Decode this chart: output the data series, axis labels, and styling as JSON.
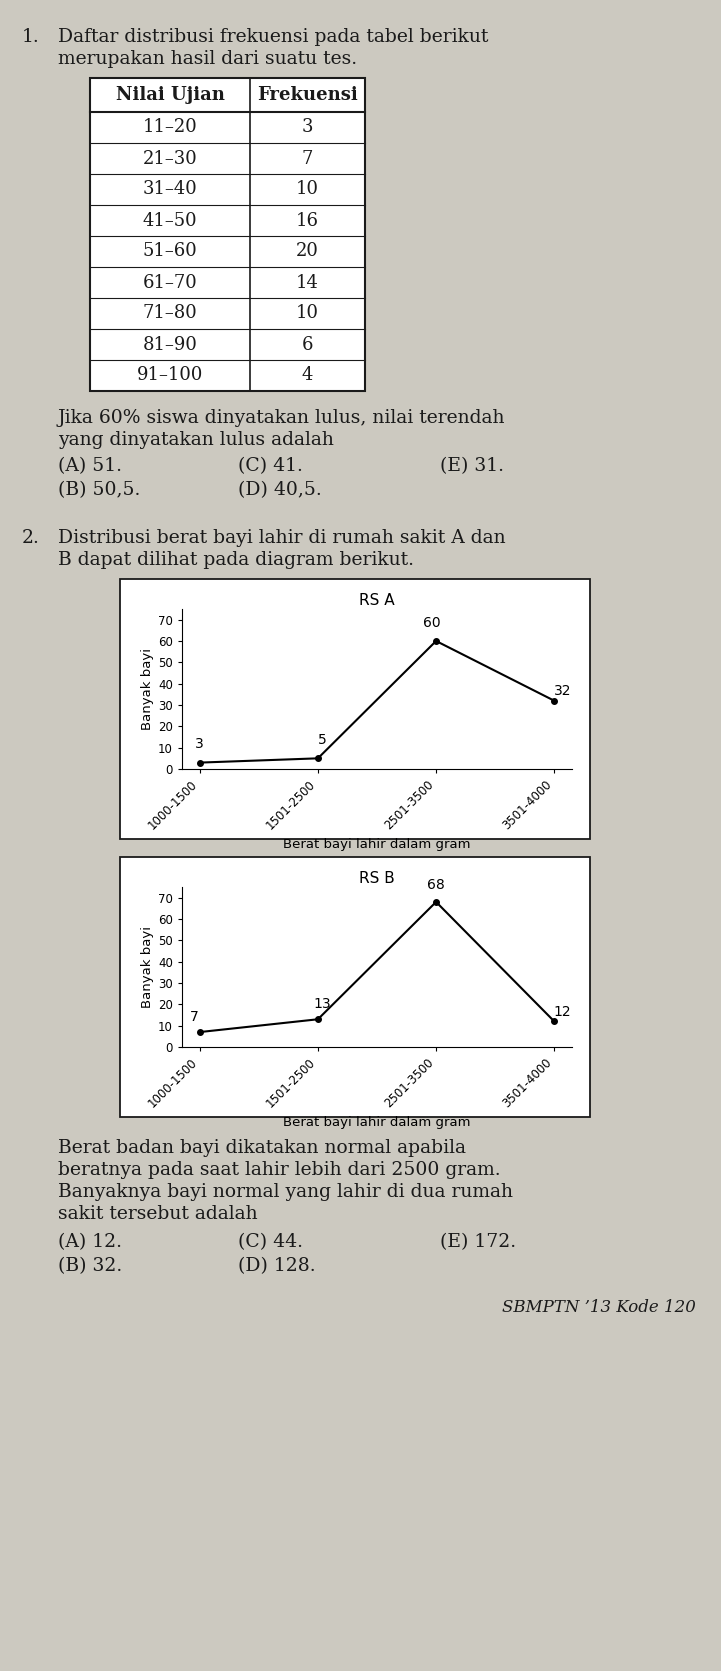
{
  "bg_color": "#ccc9c0",
  "text_color": "#1a1a1a",
  "problem1": {
    "table_headers": [
      "Nilai Ujian",
      "Frekuensi"
    ],
    "table_rows": [
      [
        "11–20",
        "3"
      ],
      [
        "21–30",
        "7"
      ],
      [
        "31–40",
        "10"
      ],
      [
        "41–50",
        "16"
      ],
      [
        "51–60",
        "20"
      ],
      [
        "61–70",
        "14"
      ],
      [
        "71–80",
        "10"
      ],
      [
        "81–90",
        "6"
      ],
      [
        "91–100",
        "4"
      ]
    ]
  },
  "problem2": {
    "chart_rsa": {
      "title": "RS A",
      "x_labels": [
        "1000-1500",
        "1501-2500",
        "2501-3500",
        "3501-4000"
      ],
      "y_values": [
        3,
        5,
        60,
        32
      ],
      "xlabel": "Berat bayi lahir dalam gram",
      "ylabel": "Banyak bayi",
      "ylim": [
        0,
        75
      ],
      "yticks": [
        0,
        10,
        20,
        30,
        40,
        50,
        60,
        70
      ]
    },
    "chart_rsb": {
      "title": "RS B",
      "x_labels": [
        "1000-1500",
        "1501-2500",
        "2501-3500",
        "3501-4000"
      ],
      "y_values": [
        7,
        13,
        68,
        12
      ],
      "xlabel": "Berat bayi lahir dalam gram",
      "ylabel": "Banyak bayi",
      "ylim": [
        0,
        75
      ],
      "yticks": [
        0,
        10,
        20,
        30,
        40,
        50,
        60,
        70
      ]
    }
  },
  "footer": "SBMPTN ’13 Kode 120"
}
